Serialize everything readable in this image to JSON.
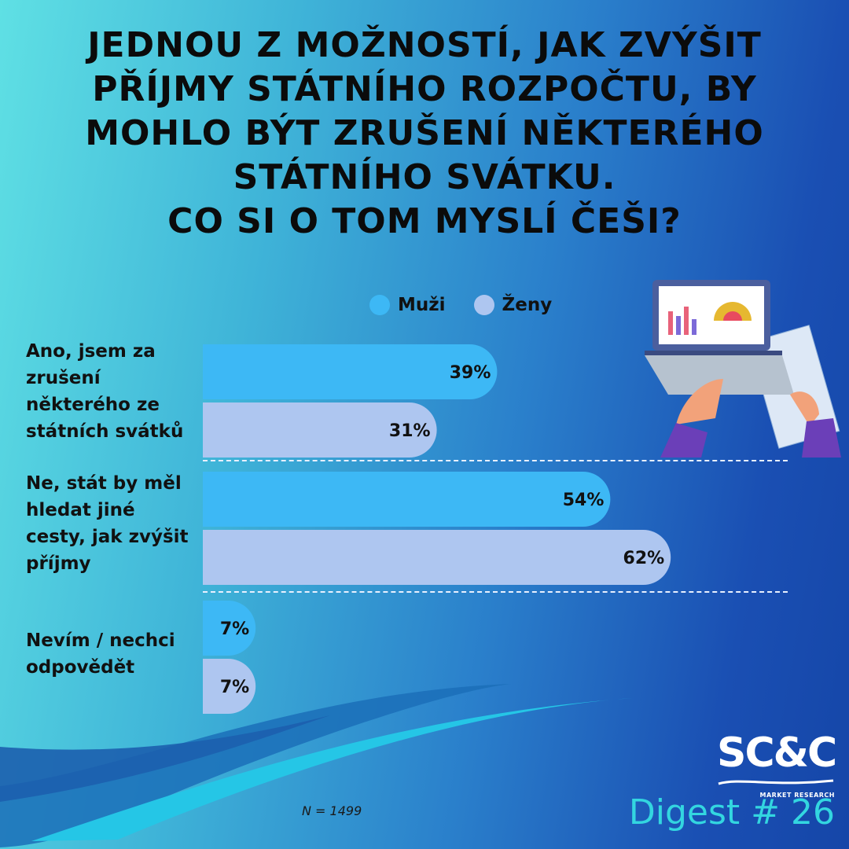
{
  "title": "JEDNOU Z MOŽNOSTÍ, JAK ZVÝŠIT\nPŘÍJMY STÁTNÍHO ROZPOČTU, BY\nMOHLO BÝT ZRUŠENÍ NĚKTERÉHO\nSTÁTNÍHO SVÁTKU.\nCO SI O TOM MYSLÍ ČEŠI?",
  "legend": [
    {
      "label": "Muži",
      "color": "#3db8f5"
    },
    {
      "label": "Ženy",
      "color": "#aec6f0"
    }
  ],
  "chart_data": {
    "type": "bar",
    "orientation": "horizontal",
    "categories": [
      "Ano, jsem za\nzrušení\nněkterého ze\nstátních svátků",
      "Ne, stát by měl\nhledat jiné\ncesty, jak zvýšit\npříjmy",
      "Nevím / nechci\nodpovědět"
    ],
    "series": [
      {
        "name": "Muži",
        "values": [
          39,
          54,
          7
        ],
        "labels": [
          "39%",
          "54%",
          "7%"
        ],
        "color": "#3db8f5"
      },
      {
        "name": "Ženy",
        "values": [
          31,
          62,
          7
        ],
        "labels": [
          "31%",
          "62%",
          "7%"
        ],
        "color": "#aec6f0"
      }
    ],
    "xlim": [
      0,
      100
    ],
    "grid": false,
    "legend_position": "top"
  },
  "footer": {
    "sample_size": "N  = 1499",
    "logo_text": "SC&C",
    "logo_subtitle": "MARKET RESEARCH",
    "digest": "Digest # 26"
  }
}
